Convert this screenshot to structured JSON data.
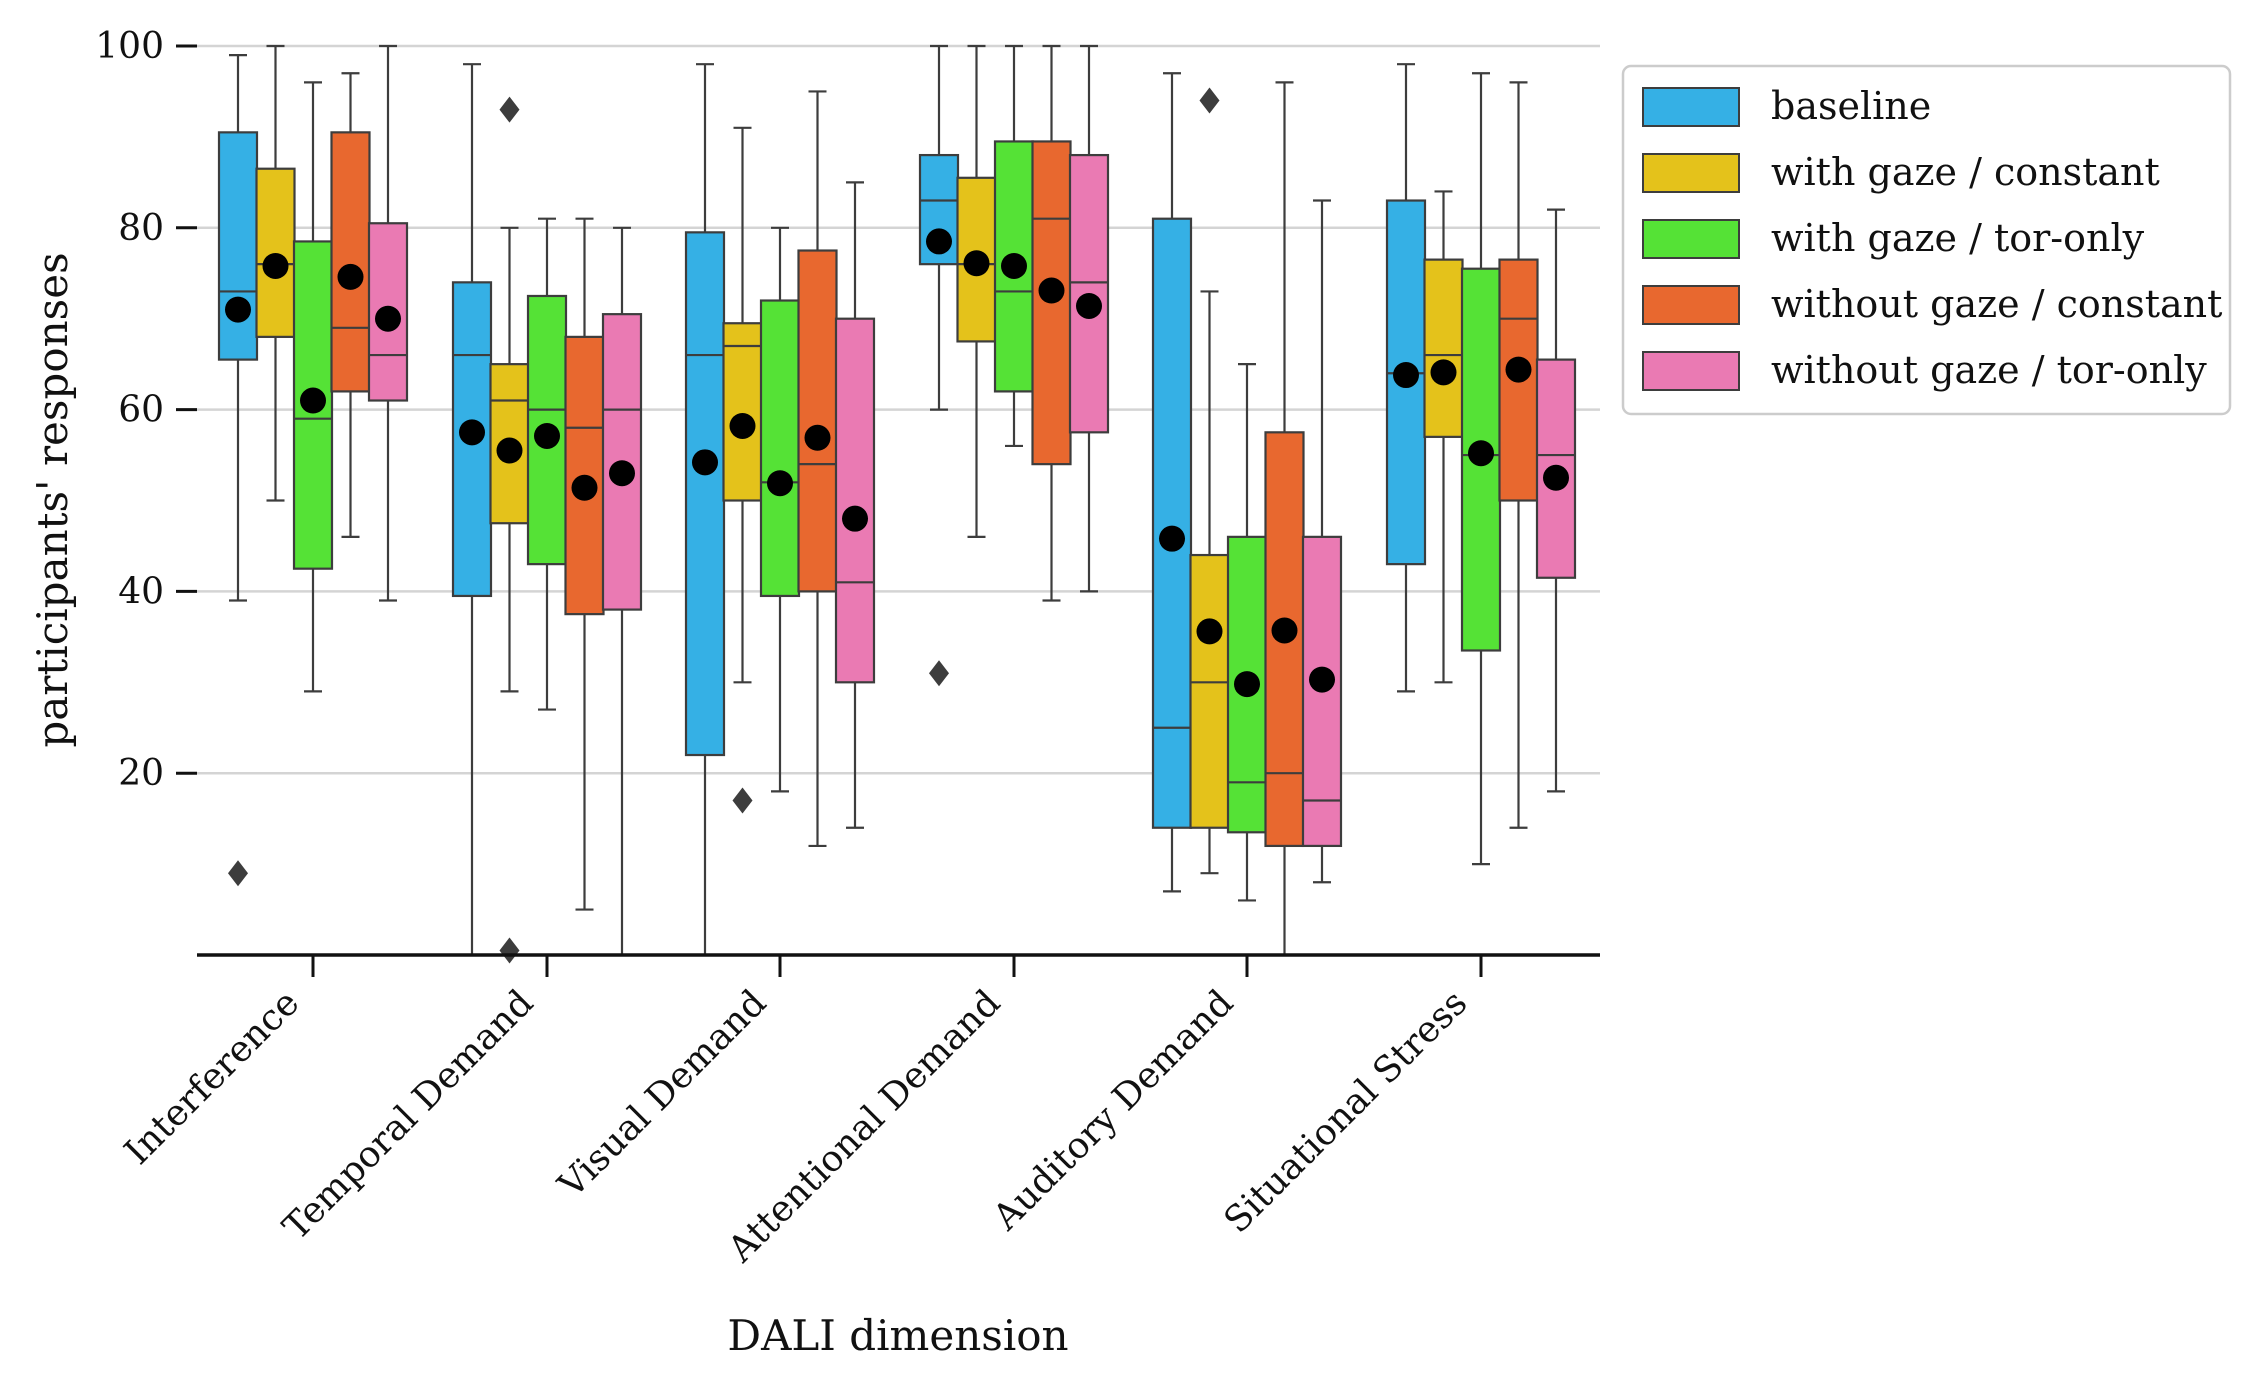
{
  "chart_data": {
    "type": "boxplot",
    "xlabel": "DALI dimension",
    "ylabel": "participants' responses",
    "ylim": [
      0,
      100
    ],
    "yticks": [
      20,
      40,
      60,
      80,
      100
    ],
    "grid": "horizontal",
    "legend_position": "upper-right-outside",
    "mean_marker": "black circle",
    "outlier_marker": "gray diamond",
    "categories": [
      "Interference",
      "Temporal Demand",
      "Visual Demand",
      "Attentional Demand",
      "Auditory Demand",
      "Situational Stress"
    ],
    "series": [
      {
        "name": "baseline",
        "color": "#35b0e5",
        "boxes": [
          {
            "whisker_low": 39,
            "q1": 65.5,
            "median": 73,
            "q3": 90.5,
            "whisker_high": 99,
            "mean": 71,
            "outliers": [
              9
            ]
          },
          {
            "whisker_low": 0,
            "q1": 39.5,
            "median": 66,
            "q3": 74,
            "whisker_high": 98,
            "mean": 57.5,
            "outliers": []
          },
          {
            "whisker_low": 0,
            "q1": 22,
            "median": 66,
            "q3": 79.5,
            "whisker_high": 98,
            "mean": 54.2,
            "outliers": []
          },
          {
            "whisker_low": 60,
            "q1": 76,
            "median": 83,
            "q3": 88,
            "whisker_high": 100,
            "mean": 78.5,
            "outliers": [
              31
            ]
          },
          {
            "whisker_low": 7,
            "q1": 14,
            "median": 25,
            "q3": 81,
            "whisker_high": 97,
            "mean": 45.8,
            "outliers": []
          },
          {
            "whisker_low": 29,
            "q1": 43,
            "median": 64,
            "q3": 83,
            "whisker_high": 98,
            "mean": 63.8,
            "outliers": []
          }
        ]
      },
      {
        "name": "with gaze / constant",
        "color": "#e4c21b",
        "boxes": [
          {
            "whisker_low": 50,
            "q1": 68,
            "median": 76,
            "q3": 86.5,
            "whisker_high": 100,
            "mean": 75.8,
            "outliers": []
          },
          {
            "whisker_low": 29,
            "q1": 47.5,
            "median": 61,
            "q3": 65,
            "whisker_high": 80,
            "mean": 55.5,
            "outliers": [
              93,
              0.5
            ]
          },
          {
            "whisker_low": 30,
            "q1": 50,
            "median": 67,
            "q3": 69.5,
            "whisker_high": 91,
            "mean": 58.2,
            "outliers": [
              17
            ]
          },
          {
            "whisker_low": 46,
            "q1": 67.5,
            "median": 76,
            "q3": 85.5,
            "whisker_high": 100,
            "mean": 76.1,
            "outliers": []
          },
          {
            "whisker_low": 9,
            "q1": 14,
            "median": 30,
            "q3": 44,
            "whisker_high": 73,
            "mean": 35.6,
            "outliers": [
              94
            ]
          },
          {
            "whisker_low": 30,
            "q1": 57,
            "median": 66,
            "q3": 76.5,
            "whisker_high": 84,
            "mean": 64.1,
            "outliers": []
          }
        ]
      },
      {
        "name": "with gaze / tor-only",
        "color": "#55e236",
        "boxes": [
          {
            "whisker_low": 29,
            "q1": 42.5,
            "median": 59,
            "q3": 78.5,
            "whisker_high": 96,
            "mean": 61,
            "outliers": []
          },
          {
            "whisker_low": 27,
            "q1": 43,
            "median": 60,
            "q3": 72.5,
            "whisker_high": 81,
            "mean": 57.1,
            "outliers": []
          },
          {
            "whisker_low": 18,
            "q1": 39.5,
            "median": 52,
            "q3": 72,
            "whisker_high": 80,
            "mean": 51.9,
            "outliers": []
          },
          {
            "whisker_low": 56,
            "q1": 62,
            "median": 73,
            "q3": 89.5,
            "whisker_high": 100,
            "mean": 75.8,
            "outliers": []
          },
          {
            "whisker_low": 6,
            "q1": 13.5,
            "median": 19,
            "q3": 46,
            "whisker_high": 65,
            "mean": 29.8,
            "outliers": []
          },
          {
            "whisker_low": 10,
            "q1": 33.5,
            "median": 55,
            "q3": 75.5,
            "whisker_high": 97,
            "mean": 55.2,
            "outliers": []
          }
        ]
      },
      {
        "name": "without gaze / constant",
        "color": "#e8682f",
        "boxes": [
          {
            "whisker_low": 46,
            "q1": 62,
            "median": 69,
            "q3": 90.5,
            "whisker_high": 97,
            "mean": 74.6,
            "outliers": []
          },
          {
            "whisker_low": 5,
            "q1": 37.5,
            "median": 58,
            "q3": 68,
            "whisker_high": 81,
            "mean": 51.4,
            "outliers": []
          },
          {
            "whisker_low": 12,
            "q1": 40,
            "median": 54,
            "q3": 77.5,
            "whisker_high": 95,
            "mean": 56.9,
            "outliers": []
          },
          {
            "whisker_low": 39,
            "q1": 54,
            "median": 81,
            "q3": 89.5,
            "whisker_high": 100,
            "mean": 73.1,
            "outliers": []
          },
          {
            "whisker_low": 0,
            "q1": 12,
            "median": 20,
            "q3": 57.5,
            "whisker_high": 96,
            "mean": 35.7,
            "outliers": []
          },
          {
            "whisker_low": 14,
            "q1": 50,
            "median": 70,
            "q3": 76.5,
            "whisker_high": 96,
            "mean": 64.4,
            "outliers": []
          }
        ]
      },
      {
        "name": "without gaze / tor-only",
        "color": "#ea7ab3",
        "boxes": [
          {
            "whisker_low": 39,
            "q1": 61,
            "median": 66,
            "q3": 80.5,
            "whisker_high": 100,
            "mean": 70,
            "outliers": []
          },
          {
            "whisker_low": 0,
            "q1": 38,
            "median": 60,
            "q3": 70.5,
            "whisker_high": 80,
            "mean": 53,
            "outliers": []
          },
          {
            "whisker_low": 14,
            "q1": 30,
            "median": 41,
            "q3": 70,
            "whisker_high": 85,
            "mean": 48,
            "outliers": []
          },
          {
            "whisker_low": 40,
            "q1": 57.5,
            "median": 74,
            "q3": 88,
            "whisker_high": 100,
            "mean": 71.4,
            "outliers": []
          },
          {
            "whisker_low": 8,
            "q1": 12,
            "median": 17,
            "q3": 46,
            "whisker_high": 83,
            "mean": 30.3,
            "outliers": []
          },
          {
            "whisker_low": 18,
            "q1": 41.5,
            "median": 55,
            "q3": 65.5,
            "whisker_high": 82,
            "mean": 52.5,
            "outliers": []
          }
        ]
      }
    ]
  }
}
